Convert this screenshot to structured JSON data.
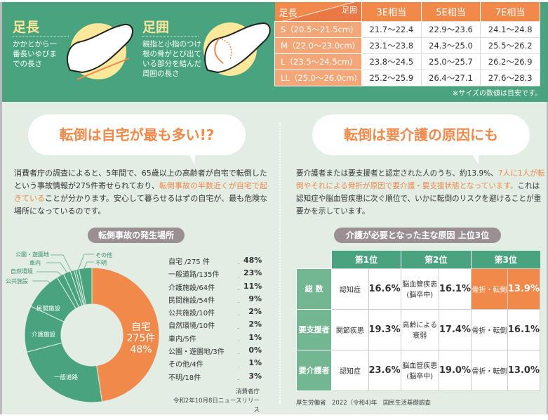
{
  "foot_length": {
    "title": "足長",
    "desc": "かかとから一番長いゆびまでの長さ"
  },
  "foot_girth": {
    "title": "足囲",
    "desc": "親指と小指のつけ根の骨がとび出ている部分を結んだ周囲の長さ"
  },
  "size_table": {
    "corner_row": "足長",
    "corner_col": "足囲",
    "columns": [
      "3E相当",
      "5E相当",
      "7E相当"
    ],
    "rows": [
      {
        "label": "S（20.5～21.5cm)",
        "values": [
          "21.7～22.4",
          "22.9～23.6",
          "24.1～24.8"
        ]
      },
      {
        "label": "M（22.0～23.0cm)",
        "values": [
          "23.1～23.8",
          "24.3～25.0",
          "25.5～26.2"
        ]
      },
      {
        "label": "L（23.5～24.5cm)",
        "values": [
          "23.8～24.5",
          "25.0～25.7",
          "26.2～26.9"
        ]
      },
      {
        "label": "LL（25.0～26.0cm)",
        "values": [
          "25.2～25.9",
          "26.4～27.1",
          "27.6～28.3"
        ]
      }
    ],
    "note": "※サイズの数値は目安です。"
  },
  "left": {
    "heading": "転倒は自宅が最も多い!?",
    "para_1": "消費者庁の調査によると、5年間で、65歳以上の高齢者が自宅で転倒したという事故情報が275件寄せられており、",
    "para_hl": "転倒事故の半数近くが自宅で起きている",
    "para_2": "ことが分かります。安心して暮らせるはずの自宅が、最も危険な場所になっているのです。",
    "chart_title": "転倒事故の発生場所",
    "center": {
      "l1": "自宅",
      "l2": "275件",
      "l3": "48%"
    },
    "source_1": "消費者庁",
    "source_2": "令和2年10月8日ニュースリリース"
  },
  "chart_data": {
    "type": "pie",
    "title": "転倒事故の発生場所",
    "categories": [
      "自宅",
      "一般道路",
      "介護施設",
      "民間施設",
      "公共施設",
      "自然環境",
      "車内",
      "公園・遊園地",
      "その他",
      "不明"
    ],
    "counts": [
      275,
      135,
      64,
      54,
      10,
      10,
      5,
      3,
      4,
      18
    ],
    "percent": [
      48,
      23,
      11,
      9,
      2,
      2,
      1,
      0,
      1,
      3
    ],
    "legend": [
      "自宅 /275 件",
      "一般道路/135件",
      "介護施設/64件",
      "民間施設/54件",
      "公共施設/10件",
      "自然環境/10件",
      "車内/5件",
      "公園・遊園地/3件",
      "その他/4件",
      "不明/18件"
    ],
    "legend_values": [
      "48%",
      "23%",
      "11%",
      "9%",
      "2%",
      "2%",
      "1%",
      "0%",
      "1%",
      "3%"
    ],
    "colors": {
      "highlight": "#f0894a",
      "other": "#48a37e"
    }
  },
  "right": {
    "heading": "転倒は要介護の原因にも",
    "para_1": "要介護者または要支援者と認定された人のうち、約13.9%、",
    "para_hl": "7人に1人が転倒やそれによる骨折が原因で要介護・要支援状態となっています。",
    "para_2": "これは認知症や脳血管疾患に次ぐ順位で、いかに転倒のリスクを避けることが重要かを示しています。",
    "table_title": "介護が必要となった主な原因 上位3位",
    "ranks": [
      "第1位",
      "第2位",
      "第3位"
    ],
    "rows": [
      {
        "label": "総 数",
        "cells": [
          [
            "認知症",
            "16.6%"
          ],
          [
            "脳血管疾患(脳卒中)",
            "16.1%"
          ],
          [
            "骨折・転倒",
            "13.9%"
          ]
        ]
      },
      {
        "label": "要支援者",
        "cells": [
          [
            "関節疾患",
            "19.3%"
          ],
          [
            "高齢による衰弱",
            "17.4%"
          ],
          [
            "骨折・転倒",
            "16.1%"
          ]
        ]
      },
      {
        "label": "要介護者",
        "cells": [
          [
            "認知症",
            "23.6%"
          ],
          [
            "脳血管疾患(脳卒中)",
            "19.0%"
          ],
          [
            "骨折・転倒",
            "13.0%"
          ]
        ]
      }
    ],
    "source": "厚生労働省　2022（令和4)年　国民生活基礎調査"
  }
}
